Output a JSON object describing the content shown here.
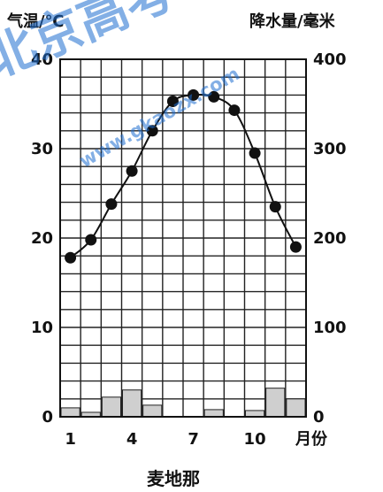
{
  "chart_data": {
    "type": "bar+line",
    "caption": "麦地那",
    "left_axis_title": "气温/℃",
    "right_axis_title": "降水量/毫米",
    "x_unit_label": "月份",
    "x_tick_labels": [
      "1",
      "4",
      "7",
      "10"
    ],
    "left_ticks": [
      "0",
      "10",
      "20",
      "30",
      "40"
    ],
    "right_ticks": [
      "0",
      "100",
      "200",
      "300",
      "400"
    ],
    "temperature_ylim": [
      0,
      40
    ],
    "precipitation_ylim": [
      0,
      400
    ],
    "months": [
      1,
      2,
      3,
      4,
      5,
      6,
      7,
      8,
      9,
      10,
      11,
      12
    ],
    "temperature": [
      17.8,
      19.8,
      23.8,
      27.5,
      32.0,
      35.3,
      36.0,
      35.8,
      34.3,
      29.5,
      23.5,
      19.0
    ],
    "precipitation": [
      10,
      5,
      22,
      30,
      13,
      0,
      0,
      8,
      0,
      7,
      32,
      20
    ]
  },
  "watermark": [
    "北京高考",
    "www.gkaozx.com"
  ],
  "colors": {
    "bar_fill": "#cfcfcf",
    "line": "#111111",
    "watermark": "#1f6fd1"
  }
}
